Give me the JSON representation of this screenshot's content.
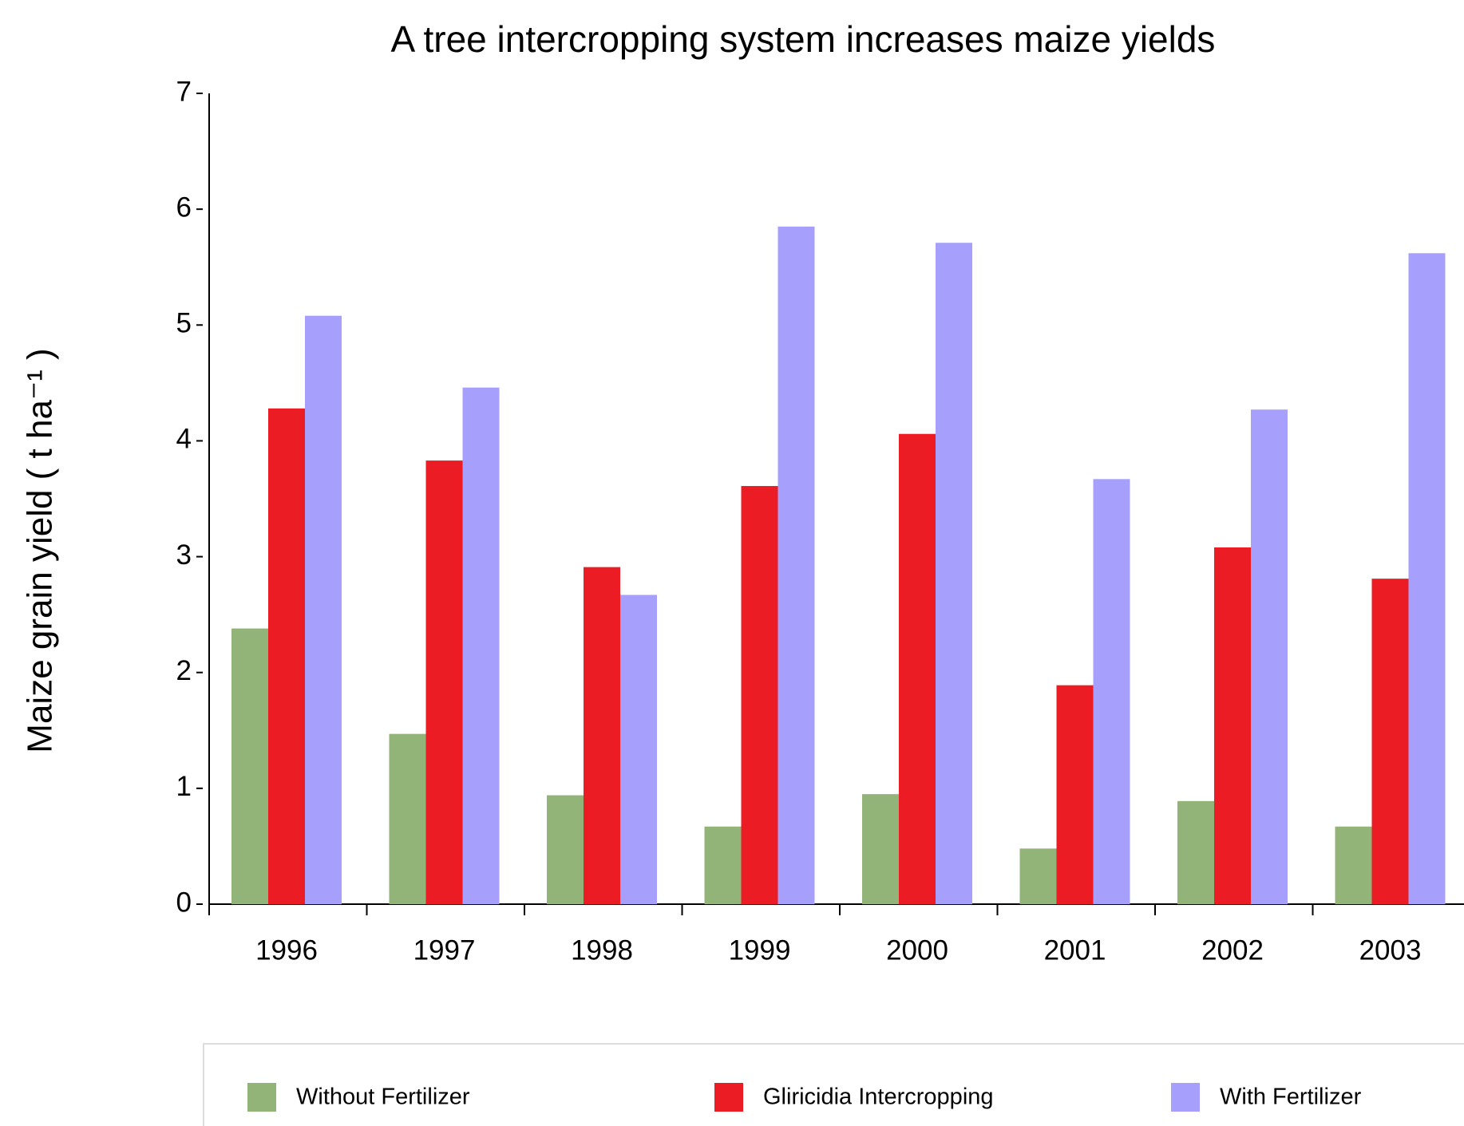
{
  "chart_data": {
    "type": "bar",
    "title": "A tree intercropping system increases maize yields",
    "y_label": "Maize grain yield ( t ha⁻¹ )",
    "categories": [
      "1996",
      "1997",
      "1998",
      "1999",
      "2000",
      "2001",
      "2002",
      "2003"
    ],
    "series": [
      {
        "name": "Without Fertilizer",
        "color": "#93b478",
        "values": [
          2.38,
          1.47,
          0.94,
          0.67,
          0.95,
          0.48,
          0.89,
          0.67
        ]
      },
      {
        "name": "Gliricidia Intercropping",
        "color": "#ec1c24",
        "values": [
          4.28,
          3.83,
          2.91,
          3.61,
          4.06,
          1.89,
          3.08,
          2.81
        ]
      },
      {
        "name": "With Fertilizer",
        "color": "#a6a0fc",
        "values": [
          5.08,
          4.46,
          2.67,
          5.85,
          5.71,
          3.67,
          4.27,
          5.62
        ]
      }
    ],
    "ylim": [
      0,
      7
    ],
    "yticks": [
      0,
      1,
      2,
      3,
      4,
      5,
      6,
      7
    ],
    "legend": "bottom"
  }
}
